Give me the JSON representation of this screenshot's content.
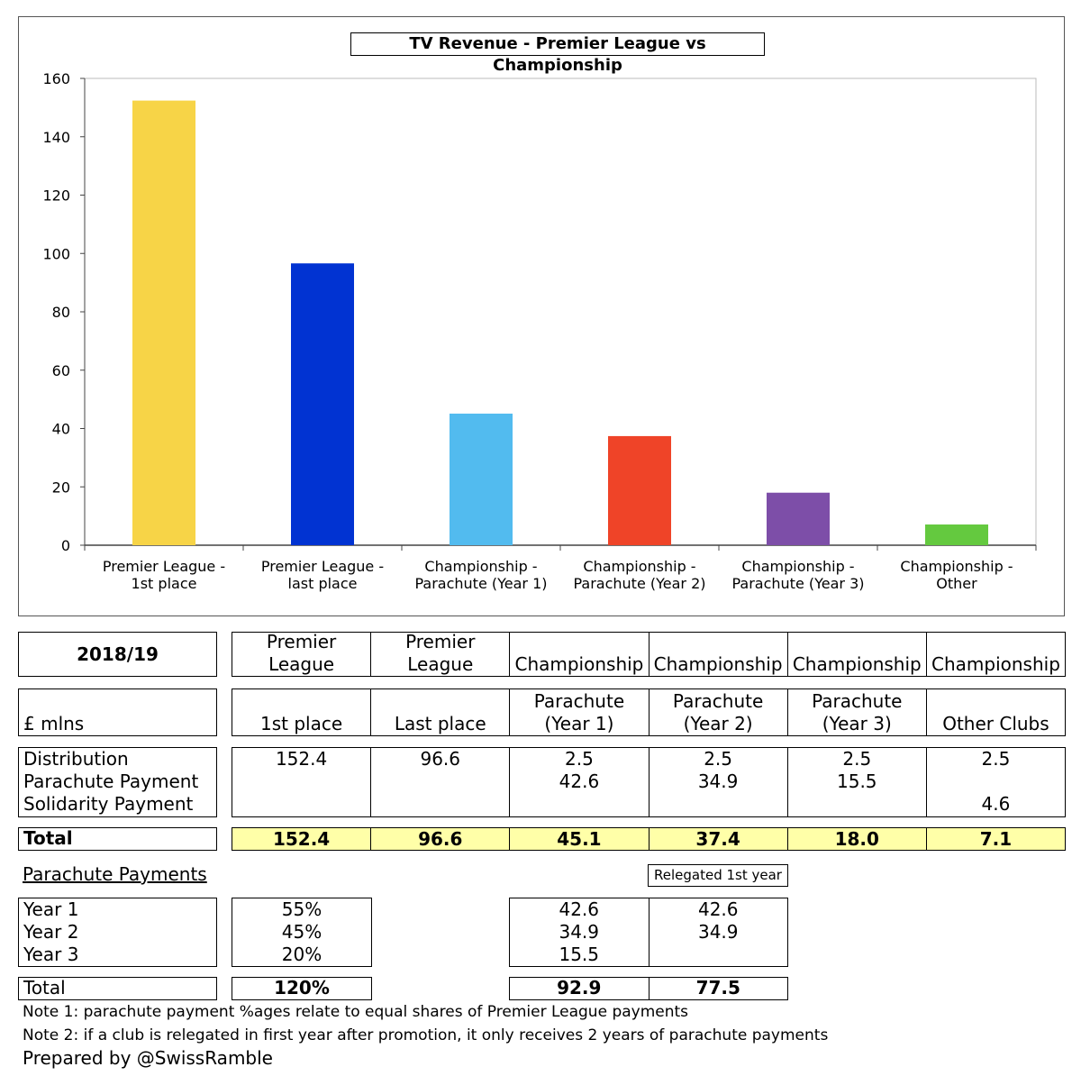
{
  "chart_data": {
    "type": "bar",
    "title": "TV Revenue - Premier League vs Championship",
    "categories": [
      [
        "Premier League -",
        "1st place"
      ],
      [
        "Premier League -",
        "last place"
      ],
      [
        "Championship -",
        "Parachute (Year 1)"
      ],
      [
        "Championship -",
        "Parachute (Year 2)"
      ],
      [
        "Championship -",
        "Parachute (Year 3)"
      ],
      [
        "Championship -",
        "Other"
      ]
    ],
    "values": [
      152.4,
      96.6,
      45.1,
      37.4,
      18.0,
      7.1
    ],
    "colors": [
      "#f7d447",
      "#0133d2",
      "#52bbef",
      "#ef4428",
      "#7d4ea8",
      "#64c93f"
    ],
    "ylim": [
      0,
      160
    ],
    "yticks": [
      "0",
      "20",
      "40",
      "60",
      "80",
      "100",
      "120",
      "140",
      "160"
    ],
    "grid": false
  },
  "table": {
    "season": "2018/19",
    "unit": "£ mlns",
    "col_top": [
      "Premier\nLeague",
      "Premier\nLeague",
      "Championship",
      "Championship",
      "Championship",
      "Championship"
    ],
    "col_sub": [
      "1st place",
      "Last place",
      "Parachute\n(Year 1)",
      "Parachute\n(Year 2)",
      "Parachute\n(Year 3)",
      "Other Clubs"
    ],
    "row_labels": [
      "Distribution",
      "Parachute Payment",
      "Solidarity Payment"
    ],
    "rows": [
      [
        "152.4",
        "96.6",
        "2.5",
        "2.5",
        "2.5",
        "2.5"
      ],
      [
        "",
        "",
        "42.6",
        "34.9",
        "15.5",
        ""
      ],
      [
        "",
        "",
        "",
        "",
        "",
        "4.6"
      ]
    ],
    "total_label": "Total",
    "totals": [
      "152.4",
      "96.6",
      "45.1",
      "37.4",
      "18.0",
      "7.1"
    ]
  },
  "parachute": {
    "heading": "Parachute Payments",
    "relegated_label": "Relegated 1st year",
    "years": [
      "Year 1",
      "Year 2",
      "Year 3"
    ],
    "pcts": [
      "55%",
      "45%",
      "20%"
    ],
    "normal": [
      "42.6",
      "34.9",
      "15.5"
    ],
    "relegated": [
      "42.6",
      "34.9",
      ""
    ],
    "total_label": "Total",
    "total_pct": "120%",
    "total_normal": "92.9",
    "total_relegated": "77.5"
  },
  "notes": [
    "Note 1: parachute payment %ages relate to equal shares of Premier League payments",
    "Note 2: if a club is relegated in first year after promotion, it only receives 2 years of parachute payments"
  ],
  "credit": "Prepared by @SwissRamble"
}
